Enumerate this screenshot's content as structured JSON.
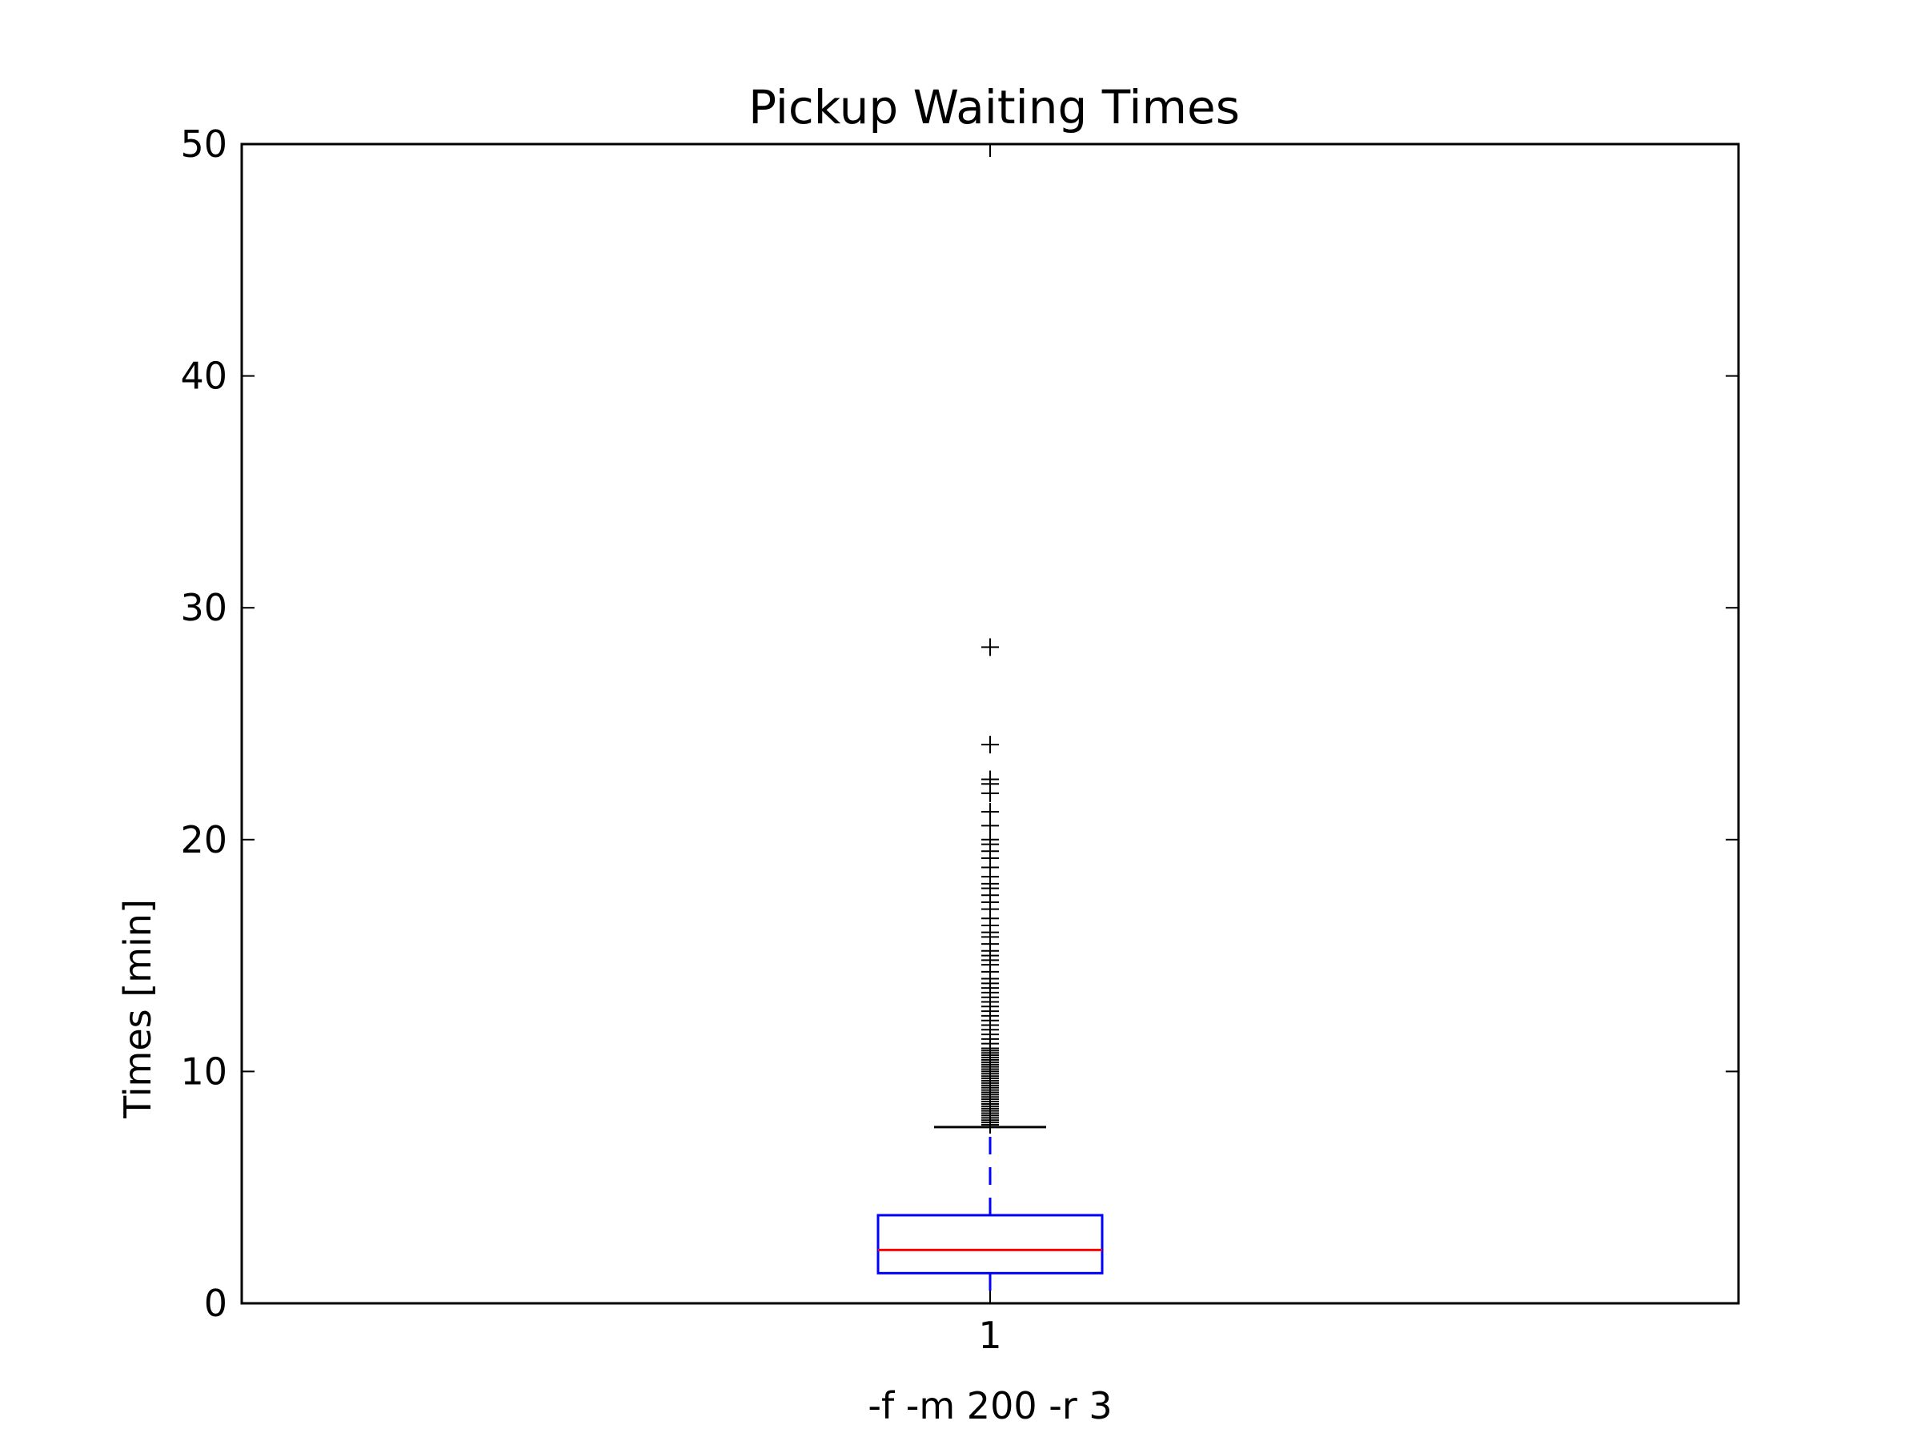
{
  "chart_data": {
    "type": "box",
    "title": "Pickup Waiting Times",
    "xlabel": "-f -m 200 -r 3",
    "ylabel": "Times [min]",
    "ylim": [
      0,
      50
    ],
    "yticks": [
      0,
      10,
      20,
      30,
      40,
      50
    ],
    "categories": [
      "1"
    ],
    "grid": false,
    "series": [
      {
        "category": "1",
        "whisker_low": 0.0,
        "q1": 1.3,
        "median": 2.3,
        "q3": 3.8,
        "whisker_high": 7.6,
        "outliers": [
          7.7,
          7.8,
          7.9,
          8.0,
          8.1,
          8.2,
          8.3,
          8.4,
          8.5,
          8.6,
          8.7,
          8.8,
          8.9,
          9.0,
          9.1,
          9.2,
          9.3,
          9.4,
          9.5,
          9.6,
          9.7,
          9.8,
          9.9,
          10.0,
          10.1,
          10.2,
          10.3,
          10.4,
          10.5,
          10.6,
          10.7,
          10.8,
          10.9,
          11.0,
          11.2,
          11.4,
          11.6,
          11.8,
          12.0,
          12.2,
          12.4,
          12.6,
          12.8,
          13.0,
          13.2,
          13.4,
          13.6,
          13.8,
          14.0,
          14.3,
          14.6,
          14.8,
          15.0,
          15.2,
          15.5,
          15.8,
          16.0,
          16.3,
          16.6,
          17.0,
          17.3,
          17.6,
          17.9,
          18.1,
          18.4,
          18.8,
          19.2,
          19.5,
          19.8,
          20.0,
          20.6,
          21.2,
          22.0,
          22.4,
          22.6,
          24.1,
          28.3
        ]
      }
    ],
    "colors": {
      "box": "#0000ff",
      "median": "#ff0000",
      "whisker": "#0000ff",
      "cap": "#000000",
      "outlier": "#000000",
      "axes": "#000000"
    }
  }
}
